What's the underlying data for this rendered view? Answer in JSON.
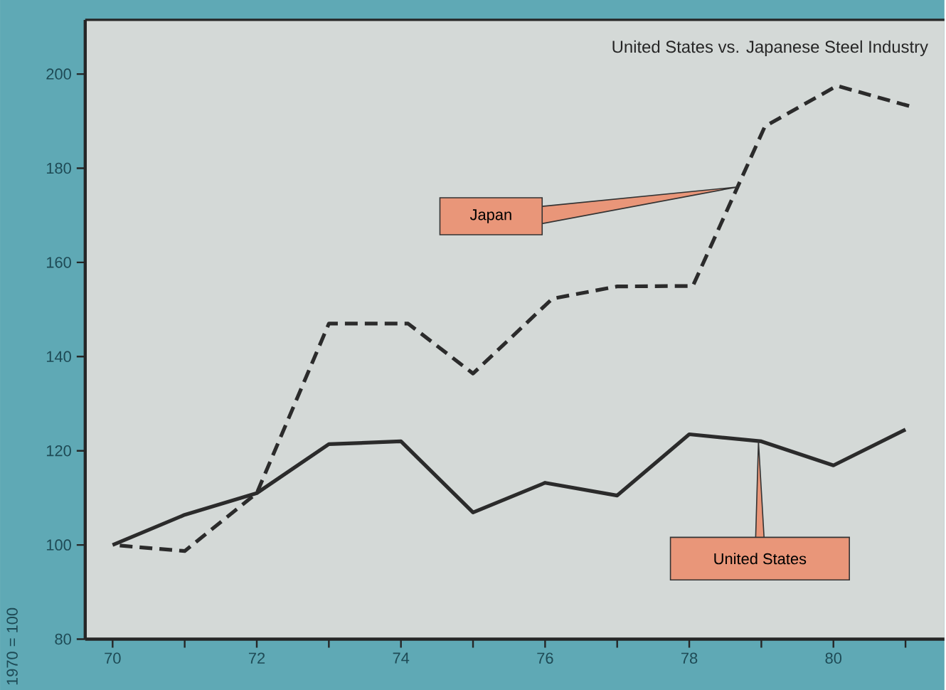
{
  "chart_data": {
    "type": "line",
    "title": "United States vs. Japanese Steel Industry",
    "ylabel": "1970 = 100",
    "xlim": [
      69.62,
      81.54
    ],
    "ylim": [
      80,
      211.5
    ],
    "xticks": [
      70,
      {
        "value": 71,
        "label": null
      },
      72,
      {
        "value": 73,
        "label": null
      },
      74,
      {
        "value": 75,
        "label": null
      },
      76,
      {
        "value": 77,
        "label": null
      },
      78,
      {
        "value": 79,
        "label": null
      },
      80,
      {
        "value": 81,
        "label": null
      }
    ],
    "yticks": [
      80,
      100,
      120,
      140,
      160,
      180,
      200
    ],
    "grid": false,
    "marker": "none",
    "series": [
      {
        "name": "Japan",
        "color": "#2b2b2b",
        "line_style": "dashed",
        "x": [
          70,
          71,
          72,
          73,
          74.1,
          75,
          76.1,
          77,
          78.05,
          79.05,
          80.05,
          81.05
        ],
        "values": [
          100,
          98.7,
          111,
          147,
          147,
          136.4,
          152.3,
          154.9,
          155,
          188.9,
          197.5,
          193.2
        ]
      },
      {
        "name": "United States",
        "color": "#2b2b2b",
        "line_style": "solid",
        "x": [
          70,
          71,
          72,
          73,
          74,
          75,
          76,
          77,
          78,
          79,
          80,
          81
        ],
        "values": [
          100,
          106.4,
          111,
          121.4,
          122,
          106.9,
          113.2,
          110.5,
          123.5,
          122,
          116.9,
          124.5
        ]
      }
    ]
  }
}
